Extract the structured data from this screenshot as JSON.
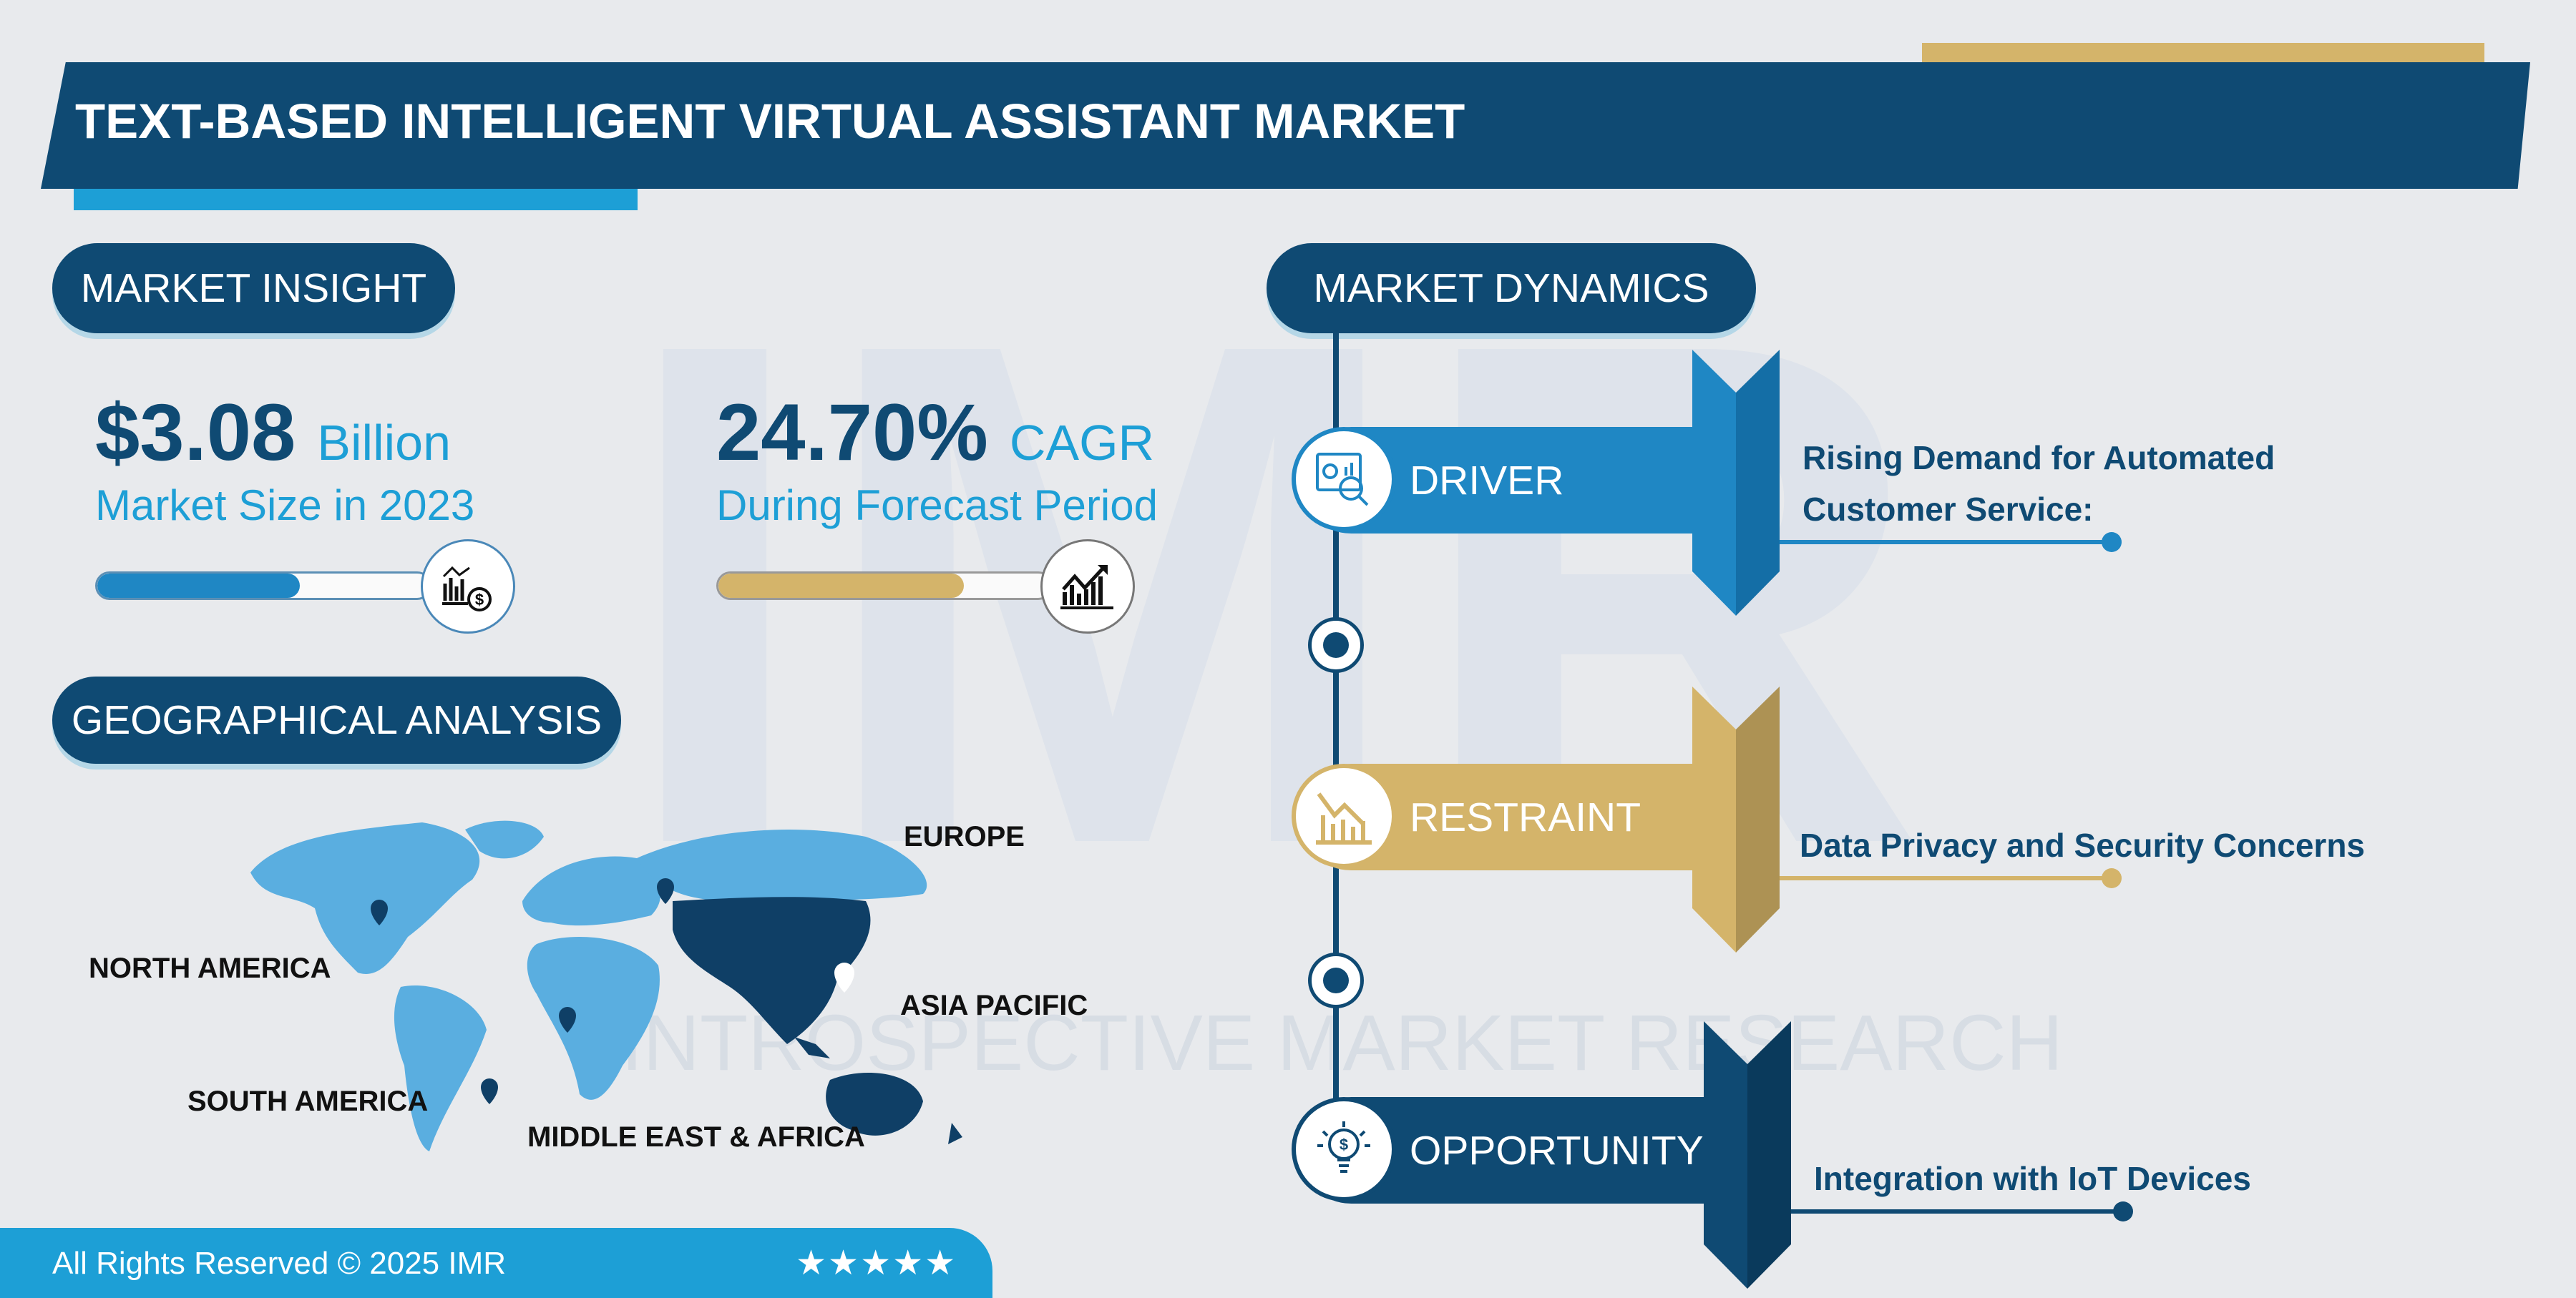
{
  "header": {
    "title": "TEXT-BASED INTELLIGENT VIRTUAL ASSISTANT MARKET"
  },
  "watermark": {
    "logo": "IMR",
    "text": "INTROSPECTIVE MARKET RESEARCH"
  },
  "market_insight": {
    "heading": "MARKET INSIGHT",
    "size": {
      "value": "$3.08",
      "unit": "Billion",
      "caption": "Market Size in 2023",
      "progress_pct": 61,
      "icon": "chart-dollar-icon"
    },
    "cagr": {
      "value": "24.70%",
      "unit": "CAGR",
      "caption": "During Forecast Period",
      "progress_pct": 74,
      "icon": "growth-chart-icon"
    }
  },
  "geo": {
    "heading": "GEOGRAPHICAL ANALYSIS",
    "regions": [
      "NORTH AMERICA",
      "EUROPE",
      "ASIA PACIFIC",
      "SOUTH AMERICA",
      "MIDDLE EAST & AFRICA"
    ],
    "highlighted": "ASIA PACIFIC"
  },
  "dynamics": {
    "heading": "MARKET DYNAMICS",
    "items": [
      {
        "label": "DRIVER",
        "text": "Rising Demand for Automated Customer Service:",
        "color": "#1f87c4",
        "icon": "analytics-magnifier-icon"
      },
      {
        "label": "RESTRAINT",
        "text": "Data Privacy and Security Concerns",
        "color": "#d4b46a",
        "icon": "declining-chart-icon"
      },
      {
        "label": "OPPORTUNITY",
        "text": "Integration with IoT Devices",
        "color": "#0f4a73",
        "icon": "idea-bulb-dollar-icon"
      }
    ]
  },
  "footer": {
    "copyright": "All Rights Reserved © 2025 IMR",
    "rating": "★★★★★"
  },
  "colors": {
    "navy": "#0f4a73",
    "accent": "#1d9fd6",
    "gold": "#d4b46a",
    "blue": "#1f87c4"
  }
}
